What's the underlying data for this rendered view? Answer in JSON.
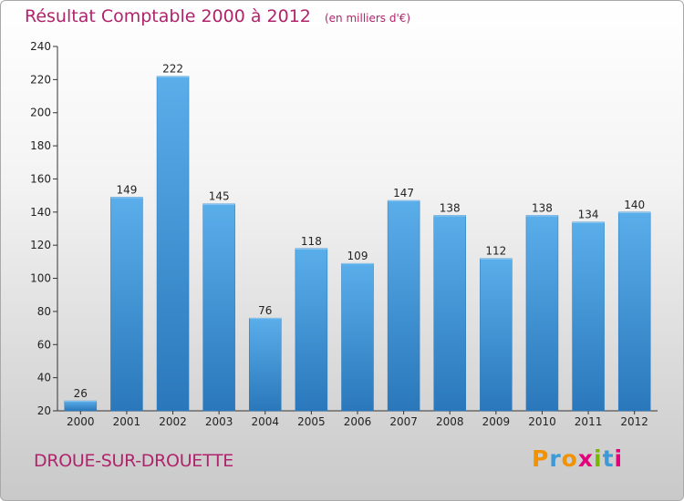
{
  "chart_data": {
    "type": "bar",
    "title": "Résultat Comptable 2000 à 2012",
    "subtitle": "(en milliers d'€)",
    "categories": [
      "2000",
      "2001",
      "2002",
      "2003",
      "2004",
      "2005",
      "2006",
      "2007",
      "2008",
      "2009",
      "2010",
      "2011",
      "2012"
    ],
    "values": [
      26,
      149,
      222,
      145,
      76,
      118,
      109,
      147,
      138,
      112,
      138,
      134,
      140
    ],
    "ylim": [
      20,
      240
    ],
    "yticks": [
      20,
      40,
      60,
      80,
      100,
      120,
      140,
      160,
      180,
      200,
      220,
      240
    ],
    "grid": false,
    "bar_color": "#3d92d6",
    "bar_color_light": "#5aaeea",
    "bar_color_dark": "#2a78bb"
  },
  "footer": {
    "commune": "DROUE-SUR-DROUETTE",
    "logo_letters": [
      "P",
      "r",
      "o",
      "x",
      "i",
      "t",
      "i"
    ],
    "logo_colors": [
      "#f39200",
      "#3c9bd6",
      "#f39200",
      "#e3007a",
      "#7ab800",
      "#3c9bd6",
      "#e3007a"
    ]
  }
}
